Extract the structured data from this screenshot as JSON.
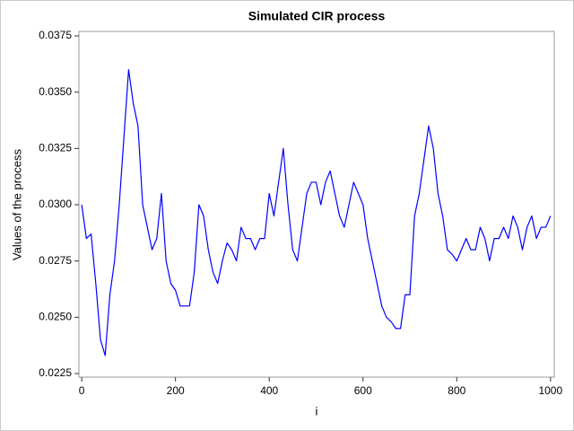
{
  "chart_data": {
    "type": "line",
    "title": "Simulated CIR process",
    "x_label": "i",
    "y_label": "Values of the process",
    "color": "#0000ff",
    "x": [
      0,
      10,
      20,
      30,
      40,
      50,
      60,
      70,
      80,
      90,
      100,
      110,
      120,
      130,
      140,
      150,
      160,
      170,
      180,
      190,
      200,
      210,
      220,
      230,
      240,
      250,
      260,
      270,
      280,
      290,
      300,
      310,
      320,
      330,
      340,
      350,
      360,
      370,
      380,
      390,
      400,
      410,
      420,
      430,
      440,
      450,
      460,
      470,
      480,
      490,
      500,
      510,
      520,
      530,
      540,
      550,
      560,
      570,
      580,
      590,
      600,
      610,
      620,
      630,
      640,
      650,
      660,
      670,
      680,
      690,
      700,
      710,
      720,
      730,
      740,
      750,
      760,
      770,
      780,
      790,
      800,
      810,
      820,
      830,
      840,
      850,
      860,
      870,
      880,
      890,
      900,
      910,
      920,
      930,
      940,
      950,
      960,
      970,
      980,
      990,
      1000
    ],
    "values": [
      0.03,
      0.0285,
      0.0287,
      0.0265,
      0.024,
      0.0233,
      0.026,
      0.0275,
      0.03,
      0.033,
      0.036,
      0.0345,
      0.0335,
      0.03,
      0.029,
      0.028,
      0.0285,
      0.0305,
      0.0275,
      0.0265,
      0.0262,
      0.0255,
      0.0255,
      0.0255,
      0.027,
      0.03,
      0.0295,
      0.028,
      0.027,
      0.0265,
      0.0275,
      0.0283,
      0.028,
      0.0275,
      0.029,
      0.0285,
      0.0285,
      0.028,
      0.0285,
      0.0285,
      0.0305,
      0.0295,
      0.031,
      0.0325,
      0.03,
      0.028,
      0.0275,
      0.029,
      0.0305,
      0.031,
      0.031,
      0.03,
      0.031,
      0.0315,
      0.0305,
      0.0295,
      0.029,
      0.03,
      0.031,
      0.0305,
      0.03,
      0.0285,
      0.0275,
      0.0265,
      0.0255,
      0.025,
      0.0248,
      0.0245,
      0.0245,
      0.026,
      0.026,
      0.0295,
      0.0305,
      0.032,
      0.0335,
      0.0325,
      0.0305,
      0.0295,
      0.028,
      0.0278,
      0.0275,
      0.028,
      0.0285,
      0.028,
      0.028,
      0.029,
      0.0285,
      0.0275,
      0.0285,
      0.0285,
      0.029,
      0.0285,
      0.0295,
      0.029,
      0.028,
      0.029,
      0.0295,
      0.0285,
      0.029,
      0.029,
      0.0295
    ],
    "xlim": [
      -6,
      1008
    ],
    "ylim": [
      0.02234,
      0.0377
    ],
    "xticks": [
      0,
      200,
      400,
      600,
      800,
      1000
    ],
    "yticks": [
      0.0225,
      {
        "value": 0.025,
        "label": "0.0250"
      },
      0.0275,
      {
        "value": 0.03,
        "label": "0.0300"
      },
      0.0325,
      {
        "value": 0.035,
        "label": "0.0350"
      },
      0.0375
    ]
  }
}
